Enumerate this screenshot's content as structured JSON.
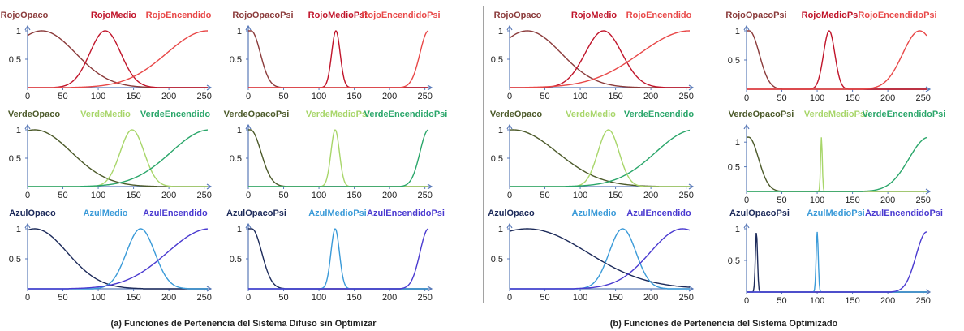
{
  "captions": {
    "left": "(a) Funciones  de Pertenencia del Sistema Difuso  sin Optimizar",
    "right": "(b) Funciones  de Pertenencia del Sistema Optimizado"
  },
  "colors": {
    "rojo_opaco": "#8b3b3b",
    "rojo_medio": "#c0142a",
    "rojo_encendido": "#e84848",
    "verde_opaco": "#4c5a2a",
    "verde_medio": "#a8d66a",
    "verde_encendido": "#2aa66a",
    "azul_opaco": "#1c2a5a",
    "azul_medio": "#3a9ad8",
    "azul_encendido": "#4a3ad0",
    "axis": "#5a7ab8",
    "divider": "#444444"
  },
  "chart_data": [
    {
      "type": "line",
      "id": "a-rojo",
      "xlim": [
        0,
        255
      ],
      "ylim": [
        0,
        1
      ],
      "xticks": [
        "0",
        "50",
        "100",
        "150",
        "200",
        "250"
      ],
      "yticks": [
        "0.5",
        "1"
      ],
      "series": [
        {
          "name": "RojoOpaco",
          "color": "#8b3b3b",
          "fn": "gauss",
          "params": [
            20,
            48,
            1
          ]
        },
        {
          "name": "RojoMedio",
          "color": "#c0142a",
          "fn": "gauss",
          "params": [
            110,
            22,
            1
          ]
        },
        {
          "name": "RojoEncendido",
          "color": "#e84848",
          "fn": "gauss",
          "params": [
            255,
            58,
            1
          ]
        }
      ]
    },
    {
      "type": "line",
      "id": "a-rojo-psi",
      "xlim": [
        0,
        255
      ],
      "ylim": [
        0,
        1
      ],
      "xticks": [
        "0",
        "50",
        "100",
        "150",
        "200",
        "250"
      ],
      "yticks": [
        "0.5",
        "1"
      ],
      "series": [
        {
          "name": "RojoOpacoPsi",
          "color": "#8b3b3b",
          "fn": "decay",
          "params": [
            4,
            13,
            1
          ]
        },
        {
          "name": "RojoMedioPsi",
          "color": "#c0142a",
          "fn": "gauss",
          "params": [
            124,
            6,
            1
          ]
        },
        {
          "name": "RojoEncendidoPsi",
          "color": "#e84848",
          "fn": "gauss",
          "params": [
            255,
            12,
            1
          ]
        }
      ]
    },
    {
      "type": "line",
      "id": "a-verde",
      "xlim": [
        0,
        255
      ],
      "ylim": [
        0,
        1
      ],
      "xticks": [
        "0",
        "50",
        "100",
        "150",
        "200",
        "250"
      ],
      "yticks": [
        "0.5",
        "1"
      ],
      "series": [
        {
          "name": "VerdeOpaco",
          "color": "#4c5a2a",
          "fn": "gauss",
          "params": [
            10,
            52,
            1
          ]
        },
        {
          "name": "VerdeMedio",
          "color": "#a8d66a",
          "fn": "gauss",
          "params": [
            148,
            17,
            1
          ]
        },
        {
          "name": "VerdeEncendido",
          "color": "#2aa66a",
          "fn": "gauss",
          "params": [
            258,
            55,
            1
          ]
        }
      ]
    },
    {
      "type": "line",
      "id": "a-verde-psi",
      "xlim": [
        0,
        255
      ],
      "ylim": [
        0,
        1
      ],
      "xticks": [
        "0",
        "50",
        "100",
        "150",
        "200",
        "250"
      ],
      "yticks": [
        "0.5",
        "1"
      ],
      "series": [
        {
          "name": "VerdeOpacoPsi",
          "color": "#4c5a2a",
          "fn": "decay",
          "params": [
            3,
            15,
            1
          ]
        },
        {
          "name": "VerdeMedioPsi",
          "color": "#a8d66a",
          "fn": "gauss",
          "params": [
            123,
            6,
            1
          ]
        },
        {
          "name": "VerdeEncendidoPsi",
          "color": "#2aa66a",
          "fn": "gauss",
          "params": [
            255,
            12,
            1
          ]
        }
      ]
    },
    {
      "type": "line",
      "id": "a-azul",
      "xlim": [
        0,
        255
      ],
      "ylim": [
        0,
        1
      ],
      "xticks": [
        "0",
        "50",
        "100",
        "150",
        "200",
        "250"
      ],
      "yticks": [
        "0.5",
        "1"
      ],
      "series": [
        {
          "name": "AzulOpaco",
          "color": "#1c2a5a",
          "fn": "gauss",
          "params": [
            10,
            46,
            1
          ]
        },
        {
          "name": "AzulMedio",
          "color": "#3a9ad8",
          "fn": "gauss",
          "params": [
            160,
            20,
            1
          ]
        },
        {
          "name": "AzulEncendido",
          "color": "#4a3ad0",
          "fn": "gauss",
          "params": [
            258,
            60,
            1
          ]
        }
      ]
    },
    {
      "type": "line",
      "id": "a-azul-psi",
      "xlim": [
        0,
        255
      ],
      "ylim": [
        0,
        1
      ],
      "xticks": [
        "0",
        "50",
        "100",
        "150",
        "200",
        "250"
      ],
      "yticks": [
        "0.5",
        "1"
      ],
      "series": [
        {
          "name": "AzulOpacoPsi",
          "color": "#1c2a5a",
          "fn": "decay",
          "params": [
            5,
            14,
            1
          ]
        },
        {
          "name": "AzulMedioPsi",
          "color": "#3a9ad8",
          "fn": "gauss",
          "params": [
            123,
            6,
            1
          ]
        },
        {
          "name": "AzulEncendidoPsi",
          "color": "#4a3ad0",
          "fn": "gauss",
          "params": [
            255,
            12,
            1
          ]
        }
      ]
    },
    {
      "type": "line",
      "id": "b-rojo",
      "xlim": [
        0,
        255
      ],
      "ylim": [
        0,
        1
      ],
      "xticks": [
        "0",
        "50",
        "100",
        "150",
        "200",
        "250"
      ],
      "yticks": [
        "0.5",
        "1"
      ],
      "series": [
        {
          "name": "RojoOpaco",
          "color": "#8b3b3b",
          "fn": "gauss",
          "params": [
            25,
            48,
            1
          ]
        },
        {
          "name": "RojoMedio",
          "color": "#c0142a",
          "fn": "gauss",
          "params": [
            133,
            26,
            1
          ]
        },
        {
          "name": "RojoEncendido",
          "color": "#e84848",
          "fn": "gauss",
          "params": [
            255,
            70,
            1
          ]
        }
      ]
    },
    {
      "type": "line",
      "id": "b-rojo-psi",
      "xlim": [
        0,
        255
      ],
      "ylim": [
        0,
        1
      ],
      "xticks": [
        "0",
        "50",
        "100",
        "150",
        "200",
        "250"
      ],
      "yticks": [
        "0.5",
        "1"
      ],
      "series": [
        {
          "name": "RojoOpacoPsi",
          "color": "#8b3b3b",
          "fn": "decay",
          "params": [
            4,
            14,
            1
          ]
        },
        {
          "name": "RojoMedioPsi",
          "color": "#c0142a",
          "fn": "gauss",
          "params": [
            117,
            8,
            1
          ]
        },
        {
          "name": "RojoEncendidoPsi",
          "color": "#e84848",
          "fn": "gauss",
          "params": [
            245,
            24,
            1
          ]
        }
      ]
    },
    {
      "type": "line",
      "id": "b-verde",
      "xlim": [
        0,
        255
      ],
      "ylim": [
        0,
        1
      ],
      "xticks": [
        "0",
        "50",
        "100",
        "150",
        "200",
        "250"
      ],
      "yticks": [
        "0.5",
        "1"
      ],
      "series": [
        {
          "name": "VerdeOpaco",
          "color": "#4c5a2a",
          "fn": "gauss",
          "params": [
            5,
            62,
            1
          ]
        },
        {
          "name": "VerdeMedio",
          "color": "#a8d66a",
          "fn": "gauss",
          "params": [
            140,
            15,
            1
          ]
        },
        {
          "name": "VerdeEncendido",
          "color": "#2aa66a",
          "fn": "gauss",
          "params": [
            262,
            55,
            1
          ]
        }
      ]
    },
    {
      "type": "line",
      "id": "b-verde-psi",
      "xlim": [
        0,
        255
      ],
      "ylim": [
        0,
        1.25
      ],
      "xticks": [
        "0",
        "50",
        "100",
        "150",
        "200",
        "250"
      ],
      "yticks": [
        "0.5",
        "1"
      ],
      "series": [
        {
          "name": "VerdeOpacoPsi",
          "color": "#4c5a2a",
          "fn": "decay",
          "params": [
            3,
            14,
            1.1
          ]
        },
        {
          "name": "VerdeMedioPsi",
          "color": "#a8d66a",
          "fn": "spike",
          "params": [
            106,
            1.2,
            1.1
          ]
        },
        {
          "name": "VerdeEncendidoPsi",
          "color": "#2aa66a",
          "fn": "gauss",
          "params": [
            258,
            28,
            1.1
          ]
        }
      ]
    },
    {
      "type": "line",
      "id": "b-azul",
      "xlim": [
        0,
        255
      ],
      "ylim": [
        0,
        1
      ],
      "xticks": [
        "0",
        "50",
        "100",
        "150",
        "200",
        "250"
      ],
      "yticks": [
        "0.5",
        "1"
      ],
      "series": [
        {
          "name": "AzulOpaco",
          "color": "#1c2a5a",
          "fn": "gauss",
          "params": [
            25,
            85,
            1
          ]
        },
        {
          "name": "AzulMedio",
          "color": "#3a9ad8",
          "fn": "gauss",
          "params": [
            160,
            19,
            1
          ]
        },
        {
          "name": "AzulEncendido",
          "color": "#4a3ad0",
          "fn": "gauss",
          "params": [
            245,
            46,
            1
          ]
        }
      ]
    },
    {
      "type": "line",
      "id": "b-azul-psi",
      "xlim": [
        0,
        255
      ],
      "ylim": [
        0,
        1
      ],
      "xticks": [
        "0",
        "50",
        "100",
        "150",
        "200",
        "250"
      ],
      "yticks": [
        "0.5",
        "1"
      ],
      "series": [
        {
          "name": "AzulOpacoPsi",
          "color": "#1c2a5a",
          "fn": "spike",
          "params": [
            14,
            1.5,
            0.95
          ]
        },
        {
          "name": "AzulMedioPsi",
          "color": "#3a9ad8",
          "fn": "spike",
          "params": [
            100,
            1.5,
            0.95
          ]
        },
        {
          "name": "AzulEncendidoPsi",
          "color": "#4a3ad0",
          "fn": "gauss",
          "params": [
            255,
            15,
            0.95
          ]
        }
      ]
    }
  ]
}
